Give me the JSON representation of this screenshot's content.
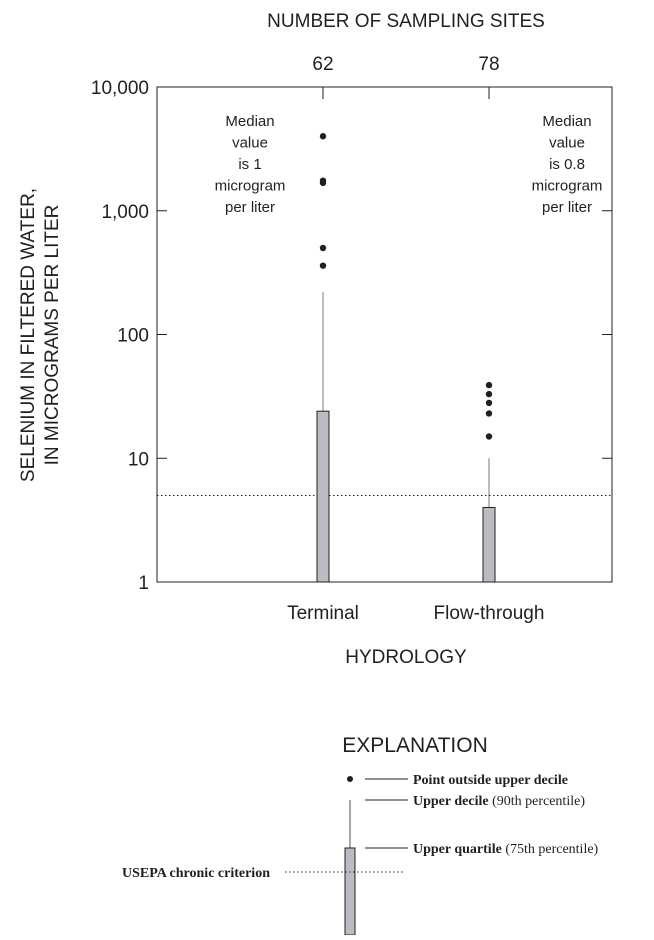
{
  "chart_data": {
    "type": "box",
    "top_axis_title": "NUMBER OF SAMPLING SITES",
    "y_label": [
      "SELENIUM IN FILTERED WATER,",
      "IN MICROGRAMS PER LITER"
    ],
    "x_label": "HYDROLOGY",
    "log_y": true,
    "ylim": [
      1,
      10000
    ],
    "yticks": [
      1,
      10,
      100,
      {
        "value": 1000,
        "label": "1,000"
      },
      {
        "value": 10000,
        "label": "10,000"
      }
    ],
    "categories": [
      "Terminal",
      "Flow-through"
    ],
    "site_counts": [
      62,
      78
    ],
    "upper_quartile": [
      24,
      4
    ],
    "upper_decile": [
      220,
      10
    ],
    "outliers": [
      [
        4000,
        1750,
        1680,
        500,
        360
      ],
      [
        39,
        33,
        28,
        23,
        15
      ]
    ],
    "annotations": [
      [
        "Median",
        "value",
        "is 1",
        "microgram",
        "per liter"
      ],
      [
        "Median",
        "value",
        "is 0.8",
        "microgram",
        "per liter"
      ]
    ],
    "criterion": 5,
    "box_color": "#b9bcc0",
    "legend": {
      "title": "EXPLANATION",
      "point": "Point outside upper decile",
      "decile": [
        "Upper decile",
        "(90th percentile)"
      ],
      "quartile": [
        "Upper quartile",
        "(75th percentile)"
      ],
      "criterion": "USEPA chronic criterion"
    }
  }
}
